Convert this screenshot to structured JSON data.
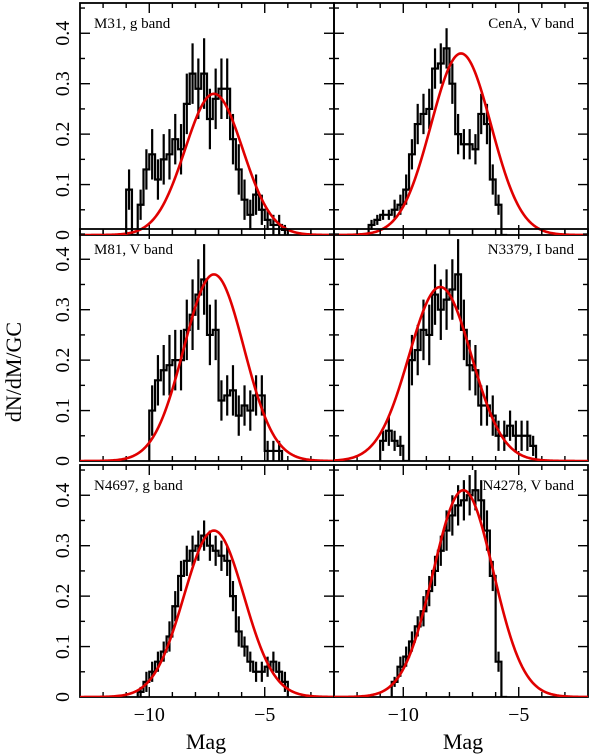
{
  "chart_data": {
    "type": "histogram-grid",
    "ylabel": "dN/dM/GC",
    "xlabel": "Mag",
    "xlim": [
      -13,
      -2
    ],
    "ylim": [
      0,
      0.46
    ],
    "xticks": [
      -10,
      -5
    ],
    "xtick_labels": [
      "−10",
      "−5"
    ],
    "yticks": [
      0,
      0.1,
      0.2,
      0.3,
      0.4
    ],
    "ytick_labels": [
      "0",
      "0.1",
      "0.2",
      "0.3",
      "0.4"
    ],
    "panels": [
      {
        "label": "M31, g band",
        "label_align": "left",
        "hist_x0": -11.0,
        "bin_width": 0.25,
        "values": [
          0.09,
          0.0,
          0.06,
          0.13,
          0.16,
          0.11,
          0.15,
          0.16,
          0.19,
          0.17,
          0.26,
          0.32,
          0.29,
          0.32,
          0.23,
          0.27,
          0.29,
          0.29,
          0.19,
          0.13,
          0.07,
          0.04,
          0.08,
          0.05,
          0.03,
          0.02,
          0.02,
          0.01
        ],
        "errors": [
          0.04,
          0.0,
          0.03,
          0.04,
          0.05,
          0.04,
          0.05,
          0.05,
          0.05,
          0.05,
          0.06,
          0.06,
          0.06,
          0.07,
          0.06,
          0.06,
          0.06,
          0.06,
          0.05,
          0.05,
          0.04,
          0.03,
          0.04,
          0.03,
          0.02,
          0.02,
          0.02,
          0.01
        ],
        "fit": {
          "mu": -7.2,
          "sigma": 1.25,
          "amp": 0.28
        }
      },
      {
        "label": "CenA, V band",
        "label_align": "right",
        "hist_x0": -11.5,
        "bin_width": 0.25,
        "values": [
          0.02,
          0.03,
          0.04,
          0.04,
          0.05,
          0.06,
          0.09,
          0.16,
          0.22,
          0.24,
          0.25,
          0.33,
          0.34,
          0.37,
          0.3,
          0.2,
          0.18,
          0.18,
          0.17,
          0.24,
          0.22,
          0.11,
          0.06,
          0.0
        ],
        "errors": [
          0.01,
          0.01,
          0.01,
          0.01,
          0.02,
          0.02,
          0.03,
          0.03,
          0.04,
          0.04,
          0.04,
          0.04,
          0.04,
          0.04,
          0.04,
          0.04,
          0.03,
          0.03,
          0.03,
          0.04,
          0.04,
          0.03,
          0.02,
          0.0
        ],
        "fit": {
          "mu": -7.5,
          "sigma": 1.3,
          "amp": 0.36
        }
      },
      {
        "label": "M81, V band",
        "label_align": "left",
        "hist_x0": -10.0,
        "bin_width": 0.25,
        "values": [
          0.1,
          0.16,
          0.18,
          0.19,
          0.2,
          0.2,
          0.26,
          0.29,
          0.33,
          0.36,
          0.25,
          0.26,
          0.12,
          0.13,
          0.14,
          0.09,
          0.11,
          0.1,
          0.13,
          0.13,
          0.02,
          0.02,
          0.02
        ],
        "errors": [
          0.05,
          0.05,
          0.05,
          0.06,
          0.06,
          0.06,
          0.06,
          0.07,
          0.07,
          0.07,
          0.06,
          0.06,
          0.04,
          0.04,
          0.05,
          0.04,
          0.04,
          0.04,
          0.04,
          0.04,
          0.02,
          0.02,
          0.02
        ],
        "fit": {
          "mu": -7.2,
          "sigma": 1.3,
          "amp": 0.37
        }
      },
      {
        "label": "N3379, I band",
        "label_align": "right",
        "hist_x0": -11.0,
        "bin_width": 0.25,
        "values": [
          0.04,
          0.06,
          0.04,
          0.03,
          0.0,
          0.2,
          0.22,
          0.26,
          0.25,
          0.33,
          0.3,
          0.32,
          0.34,
          0.37,
          0.26,
          0.19,
          0.18,
          0.11,
          0.11,
          0.09,
          0.05,
          0.05,
          0.07,
          0.05,
          0.05,
          0.05,
          0.03
        ],
        "errors": [
          0.02,
          0.03,
          0.02,
          0.02,
          0.0,
          0.05,
          0.05,
          0.06,
          0.06,
          0.06,
          0.06,
          0.06,
          0.06,
          0.07,
          0.06,
          0.05,
          0.05,
          0.04,
          0.04,
          0.04,
          0.03,
          0.03,
          0.03,
          0.03,
          0.03,
          0.03,
          0.02
        ],
        "fit": {
          "mu": -8.4,
          "sigma": 1.35,
          "amp": 0.345
        }
      },
      {
        "label": "N4697, g band",
        "label_align": "left",
        "hist_x0": -10.5,
        "bin_width": 0.25,
        "values": [
          0.01,
          0.03,
          0.05,
          0.07,
          0.09,
          0.12,
          0.18,
          0.24,
          0.27,
          0.29,
          0.3,
          0.32,
          0.3,
          0.29,
          0.28,
          0.27,
          0.2,
          0.13,
          0.1,
          0.07,
          0.05,
          0.05,
          0.06,
          0.07,
          0.05,
          0.03
        ],
        "errors": [
          0.01,
          0.02,
          0.02,
          0.02,
          0.02,
          0.03,
          0.03,
          0.03,
          0.03,
          0.03,
          0.03,
          0.03,
          0.03,
          0.03,
          0.03,
          0.03,
          0.03,
          0.03,
          0.02,
          0.02,
          0.02,
          0.02,
          0.02,
          0.02,
          0.02,
          0.02
        ],
        "fit": {
          "mu": -7.2,
          "sigma": 1.3,
          "amp": 0.33
        }
      },
      {
        "label": "N4278, V band",
        "label_align": "right",
        "hist_x0": -10.5,
        "bin_width": 0.25,
        "values": [
          0.03,
          0.06,
          0.08,
          0.11,
          0.14,
          0.17,
          0.21,
          0.25,
          0.29,
          0.33,
          0.36,
          0.38,
          0.39,
          0.4,
          0.41,
          0.39,
          0.33,
          0.24,
          0.07,
          0.0
        ],
        "errors": [
          0.01,
          0.02,
          0.02,
          0.02,
          0.02,
          0.03,
          0.03,
          0.03,
          0.03,
          0.04,
          0.04,
          0.04,
          0.04,
          0.04,
          0.04,
          0.04,
          0.04,
          0.03,
          0.02,
          0.0
        ],
        "fit": {
          "mu": -7.4,
          "sigma": 1.3,
          "amp": 0.41
        }
      }
    ]
  }
}
